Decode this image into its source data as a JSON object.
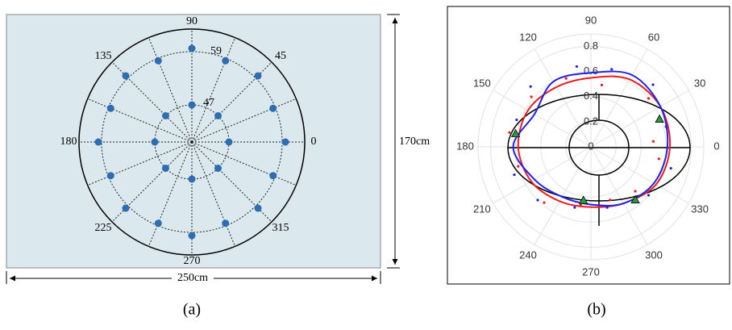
{
  "panel_a": {
    "angle_labels": [
      "90",
      "45",
      "0",
      "135",
      "180",
      "225",
      "270",
      "315"
    ],
    "ring_labels": [
      "59",
      "47"
    ],
    "height_label": "170cm",
    "width_label": "250cm",
    "caption": "(a)"
  },
  "chart_data": {
    "type": "polar",
    "caption": "(b)",
    "rlim": [
      0,
      0.9
    ],
    "rticks": [
      0,
      0.2,
      0.4,
      0.6,
      0.8
    ],
    "thetaticks": [
      0,
      30,
      60,
      90,
      120,
      150,
      180,
      210,
      240,
      270,
      300,
      330
    ],
    "grid": true,
    "series": [
      {
        "kind": "curve",
        "color": "#ee1c1c",
        "theta": [
          0,
          30,
          60,
          90,
          120,
          150,
          180,
          210,
          240,
          270,
          300,
          330
        ],
        "values": [
          0.63,
          0.64,
          0.62,
          0.55,
          0.55,
          0.58,
          0.58,
          0.55,
          0.5,
          0.48,
          0.52,
          0.6
        ]
      },
      {
        "kind": "curve",
        "color": "#2222ee",
        "theta": [
          0,
          30,
          60,
          90,
          120,
          150,
          180,
          210,
          240,
          270,
          300,
          330
        ],
        "values": [
          0.61,
          0.64,
          0.66,
          0.59,
          0.6,
          0.52,
          0.62,
          0.52,
          0.46,
          0.46,
          0.52,
          0.58
        ]
      },
      {
        "kind": "dots",
        "color": "#2222ee",
        "theta": [
          15,
          45,
          75,
          100,
          135,
          160,
          200,
          225,
          255,
          285,
          320,
          345
        ],
        "values": [
          0.62,
          0.7,
          0.64,
          0.65,
          0.68,
          0.63,
          0.65,
          0.6,
          0.5,
          0.5,
          0.6,
          0.66
        ]
      },
      {
        "kind": "dots",
        "color": "#ee1c1c",
        "theta": [
          5,
          40,
          80,
          110,
          140,
          170,
          195,
          230,
          260,
          290,
          315,
          350
        ],
        "values": [
          0.5,
          0.6,
          0.5,
          0.58,
          0.62,
          0.66,
          0.6,
          0.58,
          0.47,
          0.45,
          0.5,
          0.55
        ]
      },
      {
        "kind": "triangles",
        "color": "#2a9d3a",
        "theta": [
          22,
          170,
          262,
          310
        ],
        "values": [
          0.59,
          0.61,
          0.43,
          0.55
        ]
      }
    ]
  }
}
